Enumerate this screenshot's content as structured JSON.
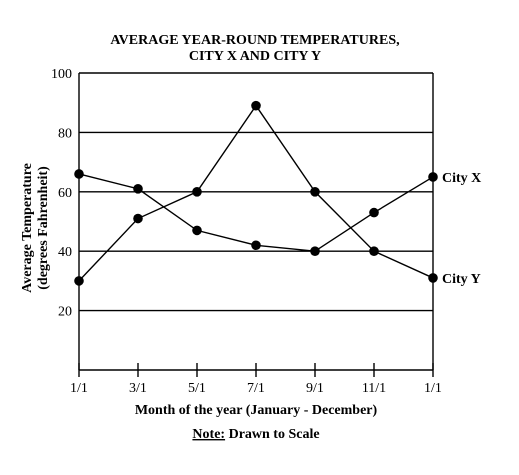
{
  "chart_data": {
    "type": "line",
    "title_lines": [
      "AVERAGE YEAR-ROUND TEMPERATURES,",
      "CITY X AND CITY Y"
    ],
    "xlabel": "Month of the year (January - December)",
    "ylabel_lines": [
      "Average Temperature",
      "(degrees Fahrenheit)"
    ],
    "categories": [
      "1/1",
      "3/1",
      "5/1",
      "7/1",
      "9/1",
      "11/1",
      "1/1"
    ],
    "yticks": [
      "20",
      "40",
      "60",
      "80",
      "100"
    ],
    "ylim": [
      0,
      100
    ],
    "grid": "horizontal",
    "series": [
      {
        "name": "City Y",
        "values": [
          30,
          51,
          60,
          89,
          60,
          40,
          31
        ]
      },
      {
        "name": "City X",
        "values": [
          66,
          61,
          47,
          42,
          40,
          53,
          65
        ]
      }
    ],
    "note_label": "Note:",
    "note_text": " Drawn to Scale"
  },
  "colors": {
    "ink": "#000000",
    "background": "#ffffff"
  }
}
